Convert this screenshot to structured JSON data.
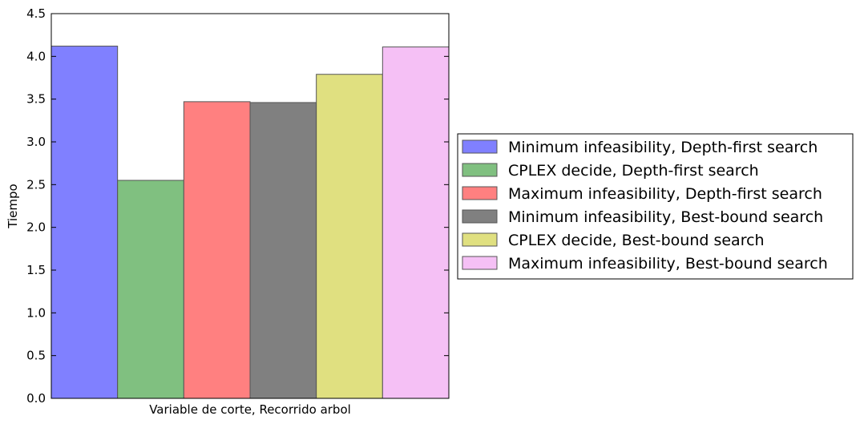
{
  "chart_data": {
    "type": "bar",
    "xlabel": "Variable de corte, Recorrido arbol",
    "ylabel": "Tiempo",
    "ylim": [
      0,
      4.5
    ],
    "yticks": [
      "0.0",
      "0.5",
      "1.0",
      "1.5",
      "2.0",
      "2.5",
      "3.0",
      "3.5",
      "4.0",
      "4.5"
    ],
    "grid": false,
    "legend_position": "right",
    "series": [
      {
        "name": "Minimum infeasibility, Depth-first search",
        "values": [
          4.12
        ],
        "color": "#8080ff"
      },
      {
        "name": "CPLEX decide, Depth-first search",
        "values": [
          2.55
        ],
        "color": "#80c080"
      },
      {
        "name": "Maximum infeasibility, Depth-first search",
        "values": [
          3.47
        ],
        "color": "#ff8080"
      },
      {
        "name": "Minimum infeasibility, Best-bound search",
        "values": [
          3.46
        ],
        "color": "#808080"
      },
      {
        "name": "CPLEX decide, Best-bound search",
        "values": [
          3.79
        ],
        "color": "#e0e080"
      },
      {
        "name": "Maximum infeasibility, Best-bound search",
        "values": [
          4.11
        ],
        "color": "#f5c0f5"
      }
    ]
  }
}
